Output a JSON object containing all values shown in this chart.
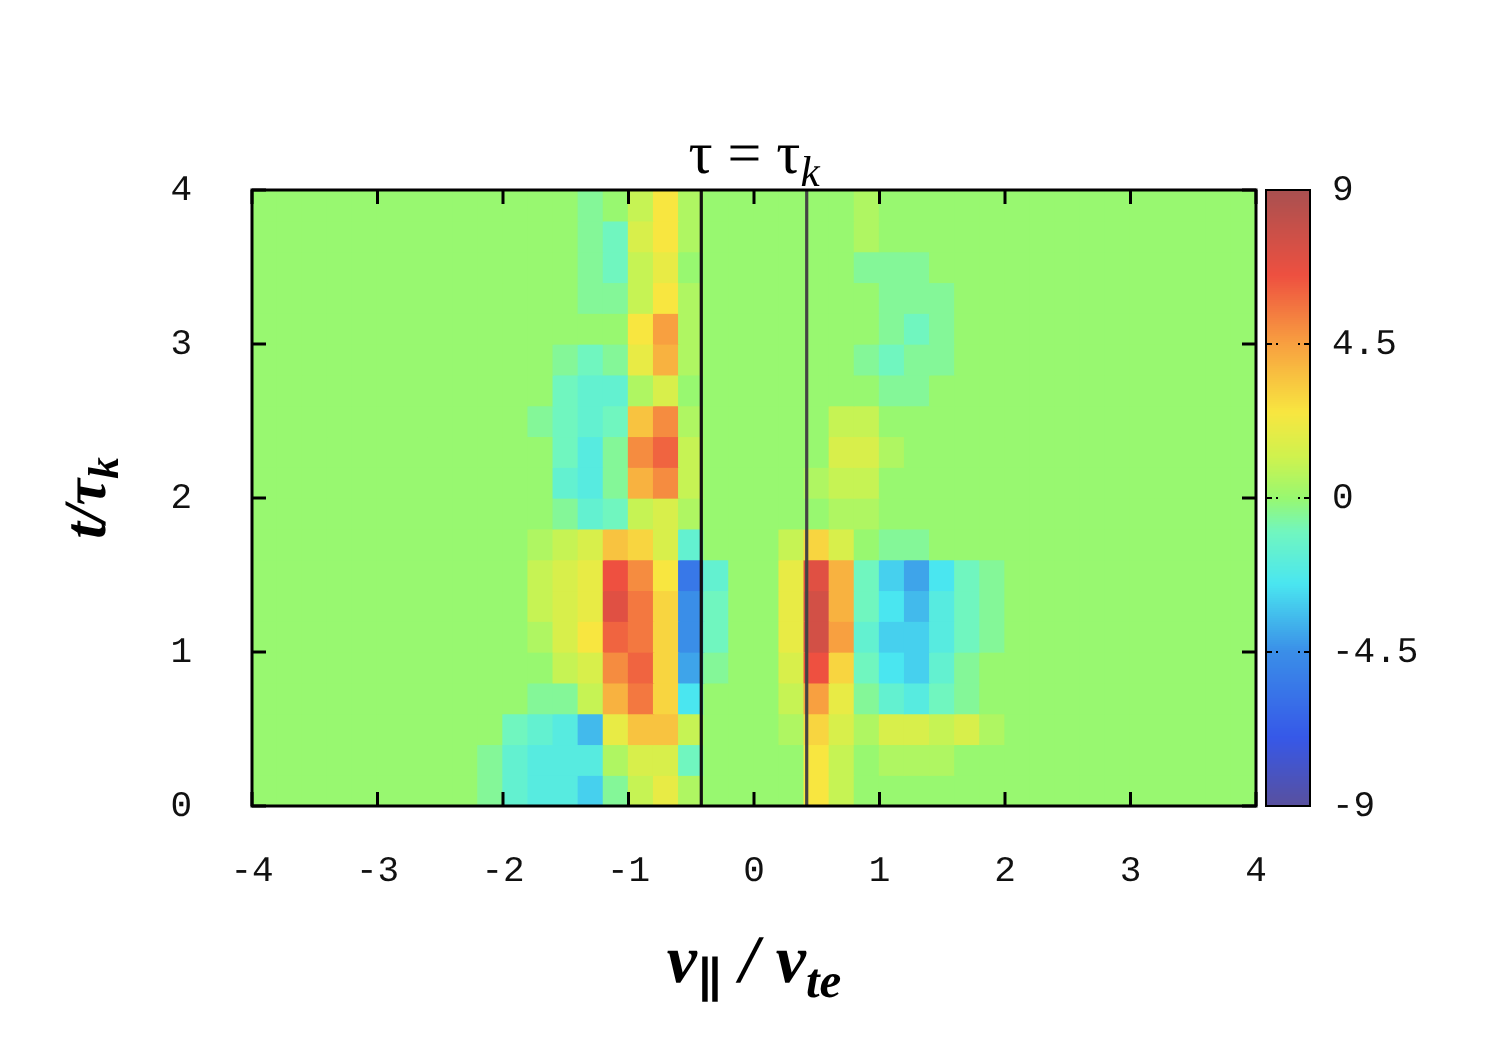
{
  "chart_data": {
    "type": "heatmap",
    "title": "τ = τ$_{k}$",
    "xlabel": "v$_{∥}$ / v$_{te}$",
    "ylabel": "t/τ$_{k}$",
    "x": [
      -3.9,
      -3.7,
      -3.5,
      -3.3,
      -3.1,
      -2.9,
      -2.7,
      -2.5,
      -2.3,
      -2.1,
      -1.9,
      -1.7,
      -1.5,
      -1.3,
      -1.1,
      -0.9,
      -0.7,
      -0.5,
      -0.3,
      -0.1,
      0.1,
      0.3,
      0.5,
      0.7,
      0.9,
      1.1,
      1.3,
      1.5,
      1.7,
      1.9,
      2.1,
      2.3,
      2.5,
      2.7,
      2.9,
      3.1,
      3.3,
      3.5,
      3.7,
      3.9
    ],
    "cells": [
      [
        0,
        0,
        0,
        0,
        0,
        0,
        0,
        0,
        0,
        0,
        0,
        0,
        0,
        -0.5,
        0,
        1,
        2.5,
        0.5,
        0,
        0,
        0,
        0,
        0,
        0,
        0.5,
        0,
        0,
        0,
        0,
        0,
        0,
        0,
        0,
        0,
        0,
        0,
        0,
        0,
        0,
        0
      ],
      [
        0,
        0,
        0,
        0,
        0,
        0,
        0,
        0,
        0,
        0,
        0,
        0,
        0,
        -0.5,
        -1,
        1.5,
        2.5,
        0.5,
        0,
        0,
        0,
        0,
        0,
        0,
        0.5,
        0,
        0,
        0,
        0,
        0,
        0,
        0,
        0,
        0,
        0,
        0,
        0,
        0,
        0,
        0
      ],
      [
        0,
        0,
        0,
        0,
        0,
        0,
        0,
        0,
        0,
        0,
        0,
        0,
        0,
        -0.5,
        -1,
        1,
        2,
        0,
        0,
        0,
        0,
        0,
        0,
        0,
        -0.5,
        -0.5,
        -0.5,
        0,
        0,
        0,
        0,
        0,
        0,
        0,
        0,
        0,
        0,
        0,
        0,
        0
      ],
      [
        0,
        0,
        0,
        0,
        0,
        0,
        0,
        0,
        0,
        0,
        0,
        0,
        0,
        -0.5,
        -0.5,
        1,
        2.5,
        0.5,
        0,
        0,
        0,
        0,
        0,
        0,
        0,
        -0.5,
        -0.5,
        -0.5,
        0,
        0,
        0,
        0,
        0,
        0,
        0,
        0,
        0,
        0,
        0,
        0
      ],
      [
        0,
        0,
        0,
        0,
        0,
        0,
        0,
        0,
        0,
        0,
        0,
        0,
        0,
        0,
        0,
        2.5,
        4.5,
        0.5,
        0,
        0,
        0,
        0,
        0,
        0,
        0,
        -0.5,
        -1,
        -0.5,
        0,
        0,
        0,
        0,
        0,
        0,
        0,
        0,
        0,
        0,
        0,
        0
      ],
      [
        0,
        0,
        0,
        0,
        0,
        0,
        0,
        0,
        0,
        0,
        0,
        0,
        -0.5,
        -1,
        -0.5,
        2,
        4,
        0.5,
        0,
        0,
        0,
        0,
        0,
        0,
        -0.5,
        -1,
        -0.5,
        -0.5,
        0,
        0,
        0,
        0,
        0,
        0,
        0,
        0,
        0,
        0,
        0,
        0
      ],
      [
        0,
        0,
        0,
        0,
        0,
        0,
        0,
        0,
        0,
        0,
        0,
        0,
        -1,
        -1.5,
        -1.5,
        0.5,
        1.5,
        0,
        0,
        0,
        0,
        0,
        0,
        0,
        0,
        -0.5,
        -0.5,
        0,
        0,
        0,
        0,
        0,
        0,
        0,
        0,
        0,
        0,
        0,
        0,
        0
      ],
      [
        0,
        0,
        0,
        0,
        0,
        0,
        0,
        0,
        0,
        0,
        0,
        -0.5,
        -1,
        -1.5,
        -1,
        3.5,
        5,
        0.5,
        0,
        0,
        0,
        0,
        0,
        1,
        1,
        0,
        0,
        0,
        0,
        0,
        0,
        0,
        0,
        0,
        0,
        0,
        0,
        0,
        0,
        0
      ],
      [
        0,
        0,
        0,
        0,
        0,
        0,
        0,
        0,
        0,
        0,
        0,
        0,
        -1,
        -2,
        -0.5,
        5,
        6,
        1,
        0,
        0,
        0,
        0,
        0,
        1.5,
        1.5,
        0.5,
        0,
        0,
        0,
        0,
        0,
        0,
        0,
        0,
        0,
        0,
        0,
        0,
        0,
        0
      ],
      [
        0,
        0,
        0,
        0,
        0,
        0,
        0,
        0,
        0,
        0,
        0,
        0,
        -1.5,
        -2,
        -0.5,
        4,
        5,
        1,
        0,
        0,
        0,
        0,
        0.5,
        1,
        1,
        0,
        0,
        0,
        0,
        0,
        0,
        0,
        0,
        0,
        0,
        0,
        0,
        0,
        0,
        0
      ],
      [
        0,
        0,
        0,
        0,
        0,
        0,
        0,
        0,
        0,
        0,
        0,
        0,
        -0.5,
        -1.5,
        -1,
        1,
        1.5,
        0.5,
        0,
        0,
        0,
        0,
        0,
        0.5,
        0.5,
        0,
        0,
        0,
        0,
        0,
        0,
        0,
        0,
        0,
        0,
        0,
        0,
        0,
        0,
        0
      ],
      [
        0,
        0,
        0,
        0,
        0,
        0,
        0,
        0,
        0,
        0,
        0,
        0.5,
        1,
        1.5,
        3.5,
        3,
        1.5,
        -1.5,
        0,
        0,
        0,
        1,
        3,
        1.5,
        0,
        -0.5,
        -0.5,
        0,
        0,
        0,
        0,
        0,
        0,
        0,
        0,
        0,
        0,
        0,
        0,
        0
      ],
      [
        0,
        0,
        0,
        0,
        0,
        0,
        0,
        0,
        0,
        0,
        0,
        1,
        1.5,
        2,
        6.5,
        5,
        2.5,
        -5.5,
        -1.5,
        0,
        0,
        2,
        7,
        4,
        -1,
        -3,
        -4,
        -2.5,
        -1,
        -0.5,
        0,
        0,
        0,
        0,
        0,
        0,
        0,
        0,
        0,
        0
      ],
      [
        0,
        0,
        0,
        0,
        0,
        0,
        0,
        0,
        0,
        0,
        0,
        1,
        1.5,
        2,
        7,
        5.5,
        3,
        -4.5,
        -1,
        0,
        0,
        2,
        7.5,
        4,
        -1,
        -2.5,
        -3.5,
        -2,
        -1,
        -0.5,
        0,
        0,
        0,
        0,
        0,
        0,
        0,
        0,
        0,
        0
      ],
      [
        0,
        0,
        0,
        0,
        0,
        0,
        0,
        0,
        0,
        0,
        0,
        0.5,
        1.5,
        2.5,
        6,
        5.5,
        3,
        -4.5,
        -1,
        0,
        0,
        2,
        7.5,
        4.5,
        -1.5,
        -3,
        -3,
        -2,
        -1,
        -0.5,
        0,
        0,
        0,
        0,
        0,
        0,
        0,
        0,
        0,
        0
      ],
      [
        0,
        0,
        0,
        0,
        0,
        0,
        0,
        0,
        0,
        0,
        0,
        0,
        1,
        1.5,
        5,
        6,
        3,
        -4,
        -0.5,
        0,
        0,
        1.5,
        6.5,
        3,
        -1,
        -2.5,
        -3,
        -1.5,
        -0.5,
        0,
        0,
        0,
        0,
        0,
        0,
        0,
        0,
        0,
        0,
        0
      ],
      [
        0,
        0,
        0,
        0,
        0,
        0,
        0,
        0,
        0,
        0,
        0,
        -0.5,
        -0.5,
        1,
        4,
        5.5,
        3,
        -2.5,
        0,
        0,
        0,
        1,
        4.5,
        2,
        -0.5,
        -1.5,
        -2,
        -1,
        -0.5,
        0,
        0,
        0,
        0,
        0,
        0,
        0,
        0,
        0,
        0,
        0
      ],
      [
        0,
        0,
        0,
        0,
        0,
        0,
        0,
        0,
        0,
        0,
        -1,
        -1.5,
        -2,
        -3.5,
        2,
        3.5,
        3.5,
        1,
        0,
        0,
        0,
        0.5,
        3,
        1.5,
        0.5,
        1.5,
        1.5,
        1,
        1.5,
        0.5,
        0,
        0,
        0,
        0,
        0,
        0,
        0,
        0,
        0,
        0
      ],
      [
        0,
        0,
        0,
        0,
        0,
        0,
        0,
        0,
        0,
        -0.5,
        -1.5,
        -2,
        -2,
        -2,
        0.5,
        1.5,
        1.5,
        -1,
        0,
        0,
        0,
        0,
        2.5,
        1,
        0,
        0.5,
        0.5,
        0.5,
        0,
        0,
        0,
        0,
        0,
        0,
        0,
        0,
        0,
        0,
        0,
        0
      ],
      [
        0,
        0,
        0,
        0,
        0,
        0,
        0,
        0,
        0,
        -0.5,
        -1.5,
        -2,
        -2,
        -3,
        -0.5,
        1,
        2,
        0.5,
        0,
        0,
        0,
        0,
        2.5,
        1,
        0,
        0,
        0,
        0,
        0,
        0,
        0,
        0,
        0,
        0,
        0,
        0,
        0,
        0,
        0,
        0
      ]
    ],
    "xlim": [
      -4,
      4
    ],
    "xticks": [
      -4,
      -3,
      -2,
      -1,
      0,
      1,
      2,
      3,
      4
    ],
    "ylim": [
      0,
      4
    ],
    "yticks": [
      0,
      1,
      2,
      3,
      4
    ],
    "clim": [
      -9,
      9
    ],
    "cticks": [
      -9,
      -4.5,
      0,
      4.5,
      9
    ],
    "ref_lines": [
      {
        "axis": "x",
        "value": -0.42,
        "color": "#111111"
      },
      {
        "axis": "x",
        "value": 0.42,
        "color": "#444444"
      }
    ]
  }
}
